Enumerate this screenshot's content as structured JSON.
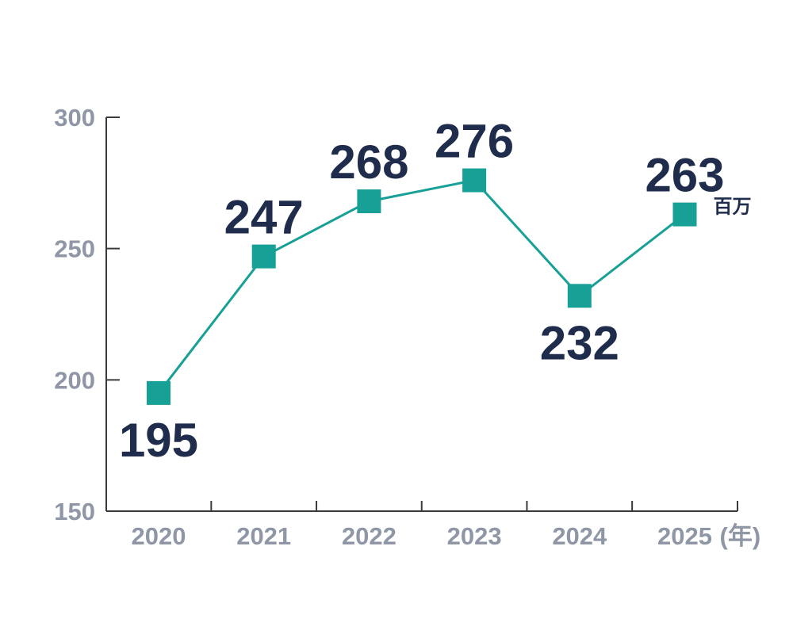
{
  "chart_data": {
    "type": "line",
    "title": "",
    "xlabel": "",
    "ylabel": "",
    "x_unit": "(年)",
    "value_unit": "百万",
    "categories": [
      "2020",
      "2021",
      "2022",
      "2023",
      "2024",
      "2025"
    ],
    "series": [
      {
        "values": [
          195,
          247,
          268,
          276,
          232,
          263
        ]
      }
    ],
    "ylim": [
      150,
      300
    ],
    "yticks": [
      150,
      200,
      250,
      300
    ],
    "grid": false,
    "legend": "none",
    "marker": "square",
    "colors": {
      "line": "#17a095",
      "marker": "#17a095",
      "axis": "#3a3a3a",
      "tick_text": "#8f96a6",
      "data_label": "#1f2c4c"
    }
  }
}
